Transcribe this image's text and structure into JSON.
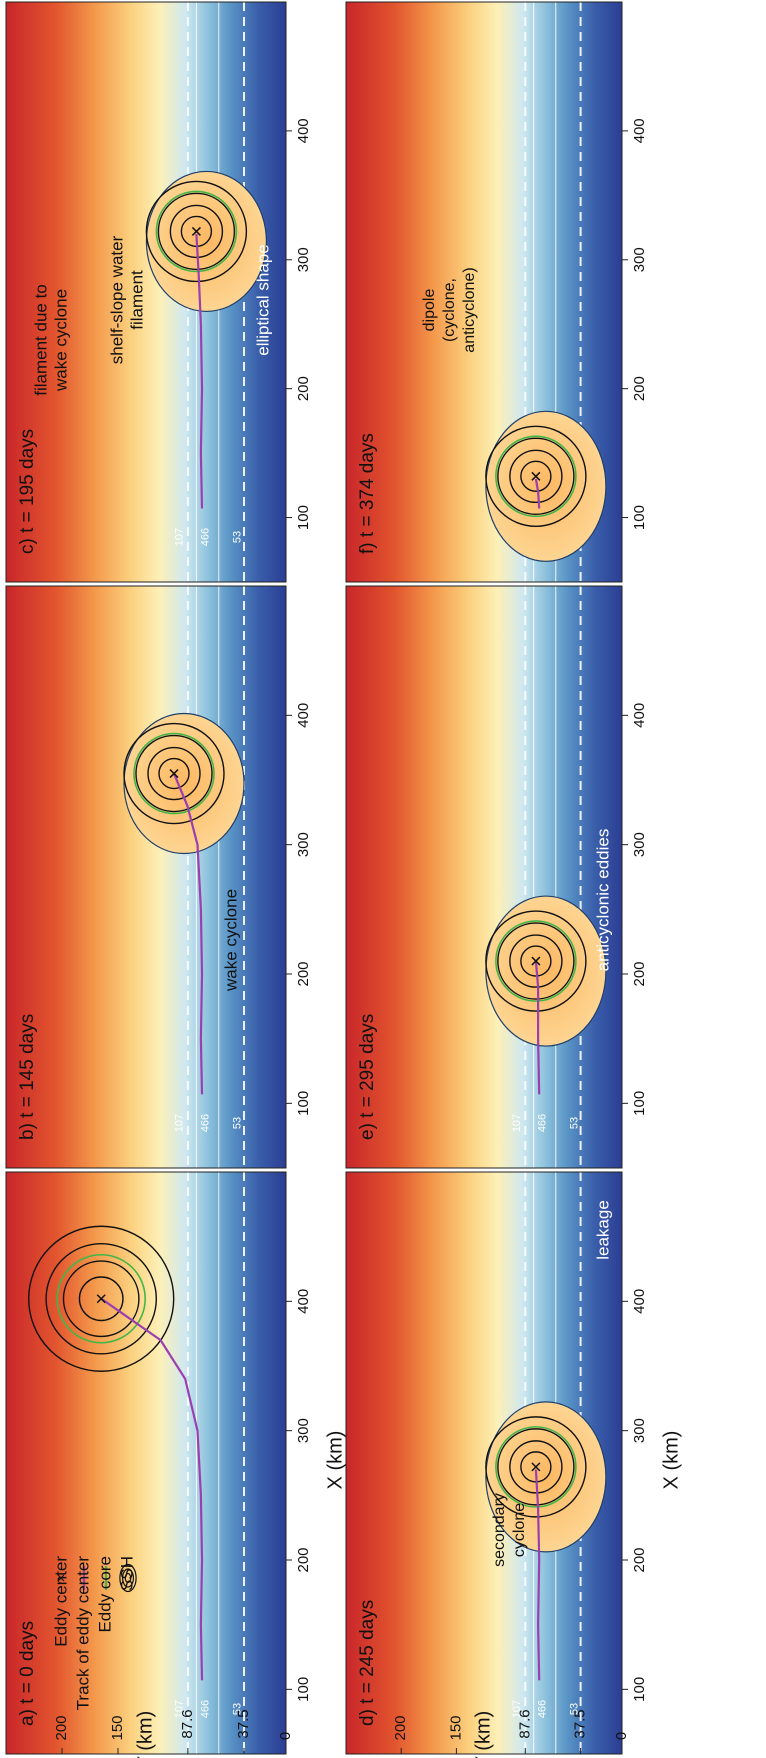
{
  "figure": {
    "x_axis_label": "X (km)",
    "y_axis_label": "Y (km)",
    "x_ticks": [
      "100",
      "200",
      "300",
      "400"
    ],
    "y_ticks": [
      "0",
      "37.5",
      "87.6",
      "150",
      "200"
    ],
    "isobath_labels": [
      "107",
      "466",
      "53"
    ],
    "colors": {
      "track": "#9b3fb0",
      "core": "#43b649",
      "ssh": "#111111",
      "isobath": "#ffffff"
    }
  },
  "legend": {
    "eddy_center": "Eddy center",
    "track": "Track of eddy center",
    "core": "Eddy core",
    "ssh": "SSH"
  },
  "panels": [
    {
      "id": "a",
      "label": "a) t = 0 days"
    },
    {
      "id": "b",
      "label": "b) t = 145 days",
      "annotations": [
        "wake cyclone"
      ]
    },
    {
      "id": "c",
      "label": "c) t = 195 days",
      "annotations": [
        "filament due to",
        "wake cyclone",
        "shelf-slope water",
        "filament",
        "elliptical shape"
      ]
    },
    {
      "id": "d",
      "label": "d) t = 245 days",
      "annotations": [
        "secondary",
        "cyclone",
        "leakage"
      ]
    },
    {
      "id": "e",
      "label": "e) t = 295 days",
      "annotations": [
        "anticyclonic eddies"
      ]
    },
    {
      "id": "f",
      "label": "f) t = 374 days",
      "annotations": [
        "dipole",
        "(cyclone,",
        "anticyclone)"
      ]
    }
  ],
  "chart_data": [
    {
      "type": "line",
      "panel": "a",
      "title": "a) t = 0 days",
      "xlabel": "X (km)",
      "ylabel": "Y (km)",
      "xlim": [
        50,
        500
      ],
      "ylim": [
        0,
        250
      ],
      "series": [
        {
          "name": "Track of eddy center",
          "x": [
            107,
            150,
            200,
            250,
            300,
            340,
            370,
            390,
            402
          ],
          "y": [
            75,
            76,
            75,
            76,
            79,
            90,
            112,
            145,
            165
          ]
        }
      ],
      "eddy_center": [
        402,
        165
      ]
    },
    {
      "type": "line",
      "panel": "b",
      "title": "b) t = 145 days",
      "xlabel": "X (km)",
      "ylabel": "Y (km)",
      "xlim": [
        50,
        500
      ],
      "ylim": [
        0,
        250
      ],
      "series": [
        {
          "name": "Track of eddy center",
          "x": [
            107,
            150,
            200,
            250,
            300,
            330,
            355
          ],
          "y": [
            75,
            76,
            75,
            76,
            79,
            88,
            100
          ]
        }
      ],
      "eddy_center": [
        355,
        100
      ]
    },
    {
      "type": "line",
      "panel": "c",
      "title": "c) t = 195 days",
      "xlabel": "X (km)",
      "ylabel": "Y (km)",
      "xlim": [
        50,
        500
      ],
      "ylim": [
        0,
        250
      ],
      "series": [
        {
          "name": "Track of eddy center",
          "x": [
            107,
            150,
            200,
            250,
            290,
            320
          ],
          "y": [
            75,
            76,
            75,
            76,
            78,
            80
          ]
        }
      ],
      "eddy_center": [
        322,
        80
      ]
    },
    {
      "type": "line",
      "panel": "d",
      "title": "d) t = 245 days",
      "xlabel": "X (km)",
      "ylabel": "Y (km)",
      "xlim": [
        50,
        500
      ],
      "ylim": [
        0,
        250
      ],
      "series": [
        {
          "name": "Track of eddy center",
          "x": [
            107,
            150,
            200,
            240,
            270
          ],
          "y": [
            75,
            76,
            75,
            76,
            78
          ]
        }
      ],
      "eddy_center": [
        272,
        78
      ]
    },
    {
      "type": "line",
      "panel": "e",
      "title": "e) t = 295 days",
      "xlabel": "X (km)",
      "ylabel": "Y (km)",
      "xlim": [
        50,
        500
      ],
      "ylim": [
        0,
        250
      ],
      "series": [
        {
          "name": "Track of eddy center",
          "x": [
            107,
            150,
            190,
            210
          ],
          "y": [
            75,
            76,
            76,
            78
          ]
        }
      ],
      "eddy_center": [
        210,
        78
      ]
    },
    {
      "type": "line",
      "panel": "f",
      "title": "f) t = 374 days",
      "xlabel": "X (km)",
      "ylabel": "Y (km)",
      "xlim": [
        50,
        500
      ],
      "ylim": [
        0,
        250
      ],
      "series": [
        {
          "name": "Track of eddy center",
          "x": [
            107,
            120,
            130
          ],
          "y": [
            75,
            76,
            78
          ]
        }
      ],
      "eddy_center": [
        132,
        78
      ]
    }
  ]
}
